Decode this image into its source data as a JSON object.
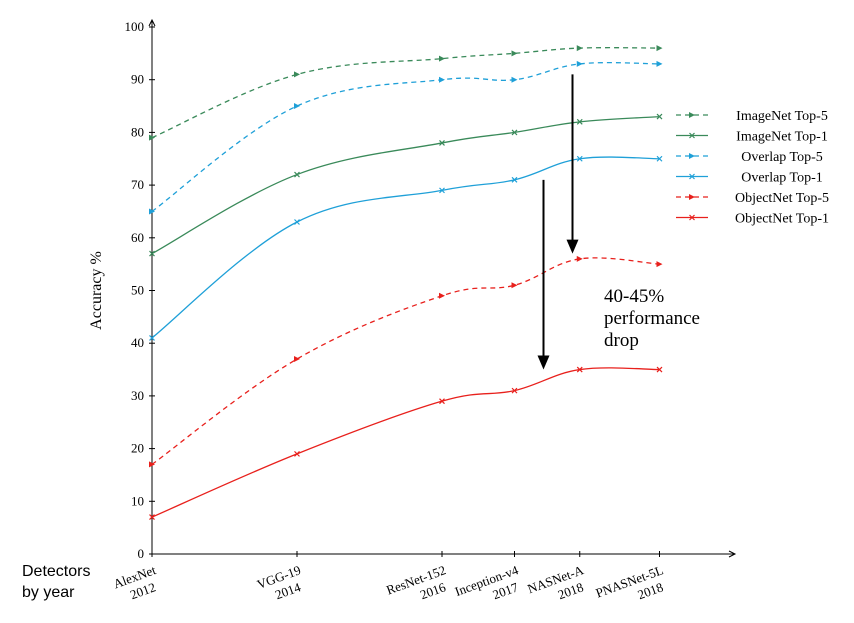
{
  "chart_data": {
    "type": "line",
    "ylabel": "Accuracy %",
    "xlabel_lines": [
      "Detectors",
      "by year"
    ],
    "ylim": [
      0,
      100
    ],
    "yticks": [
      0,
      10,
      20,
      30,
      40,
      50,
      60,
      70,
      80,
      90,
      100
    ],
    "categories": [
      {
        "name": "AlexNet",
        "year": "2012",
        "pos": 0
      },
      {
        "name": "VGG-19",
        "year": "2014",
        "pos": 2
      },
      {
        "name": "ResNet-152",
        "year": "2016",
        "pos": 4
      },
      {
        "name": "Inception-v4",
        "year": "2017",
        "pos": 5
      },
      {
        "name": "NASNet-A",
        "year": "2018",
        "pos": 5.9
      },
      {
        "name": "PNASNet-5L",
        "year": "2018",
        "pos": 7
      }
    ],
    "series": [
      {
        "name": "ImageNet Top-5",
        "values": [
          79,
          91,
          94,
          95,
          96,
          96
        ],
        "color": "#3a8a5a",
        "dashed": true,
        "marker": "arrow"
      },
      {
        "name": "ImageNet Top-1",
        "values": [
          57,
          72,
          78,
          80,
          82,
          83
        ],
        "color": "#3a8a5a",
        "dashed": false,
        "marker": "x"
      },
      {
        "name": "Overlap Top-5",
        "values": [
          65,
          85,
          90,
          90,
          93,
          93
        ],
        "color": "#1fa0d8",
        "dashed": true,
        "marker": "arrow"
      },
      {
        "name": "Overlap Top-1",
        "values": [
          41,
          63,
          69,
          71,
          75,
          75
        ],
        "color": "#1fa0d8",
        "dashed": false,
        "marker": "x"
      },
      {
        "name": "ObjectNet Top-5",
        "values": [
          17,
          37,
          49,
          51,
          56,
          55
        ],
        "color": "#e8201c",
        "dashed": true,
        "marker": "arrow"
      },
      {
        "name": "ObjectNet Top-1",
        "values": [
          7,
          19,
          29,
          31,
          35,
          35
        ],
        "color": "#e8201c",
        "dashed": false,
        "marker": "x"
      }
    ],
    "legend_position": "right",
    "annotation": {
      "lines": [
        "40-45%",
        "performance",
        "drop"
      ],
      "arrows": [
        {
          "x_pos": 5.8,
          "from": 91,
          "to": 57
        },
        {
          "x_pos": 5.4,
          "from": 71,
          "to": 35
        }
      ]
    }
  }
}
